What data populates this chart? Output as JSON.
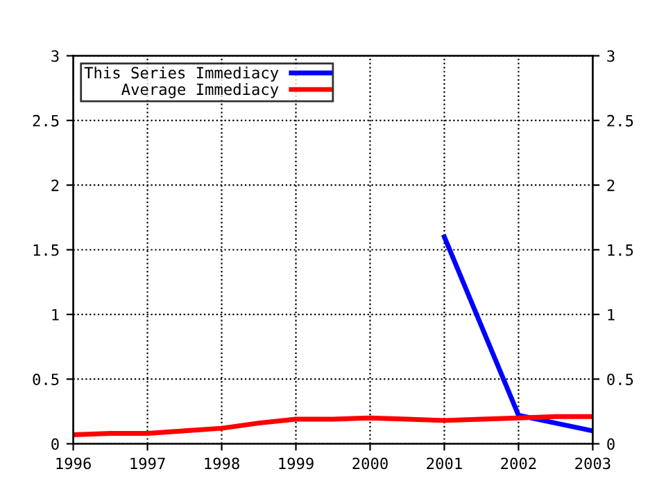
{
  "chart_data": {
    "type": "line",
    "series": [
      {
        "name": "This Series Immediacy",
        "color": "#0000ff",
        "x": [
          2001,
          2002,
          2003
        ],
        "values": [
          1.6,
          0.22,
          0.1
        ]
      },
      {
        "name": "Average Immediacy",
        "color": "#ff0000",
        "x": [
          1996,
          1996.5,
          1997,
          1997.5,
          1998,
          1998.5,
          1999,
          1999.5,
          2000,
          2000.5,
          2001,
          2001.5,
          2002,
          2002.5,
          2003
        ],
        "values": [
          0.07,
          0.08,
          0.08,
          0.1,
          0.12,
          0.16,
          0.19,
          0.19,
          0.2,
          0.19,
          0.18,
          0.19,
          0.2,
          0.21,
          0.21
        ]
      }
    ],
    "xlim": [
      1996,
      2003
    ],
    "xticks": [
      1996,
      1997,
      1998,
      1999,
      2000,
      2001,
      2002,
      2003
    ],
    "ylim": [
      0,
      3
    ],
    "yticks": [
      0,
      0.5,
      1,
      1.5,
      2,
      2.5,
      3
    ],
    "y2lim": [
      0,
      3
    ],
    "y2ticks": [
      0,
      0.5,
      1,
      1.5,
      2,
      2.5,
      3
    ],
    "grid": true,
    "legend": "top left",
    "line_style": "solid"
  }
}
